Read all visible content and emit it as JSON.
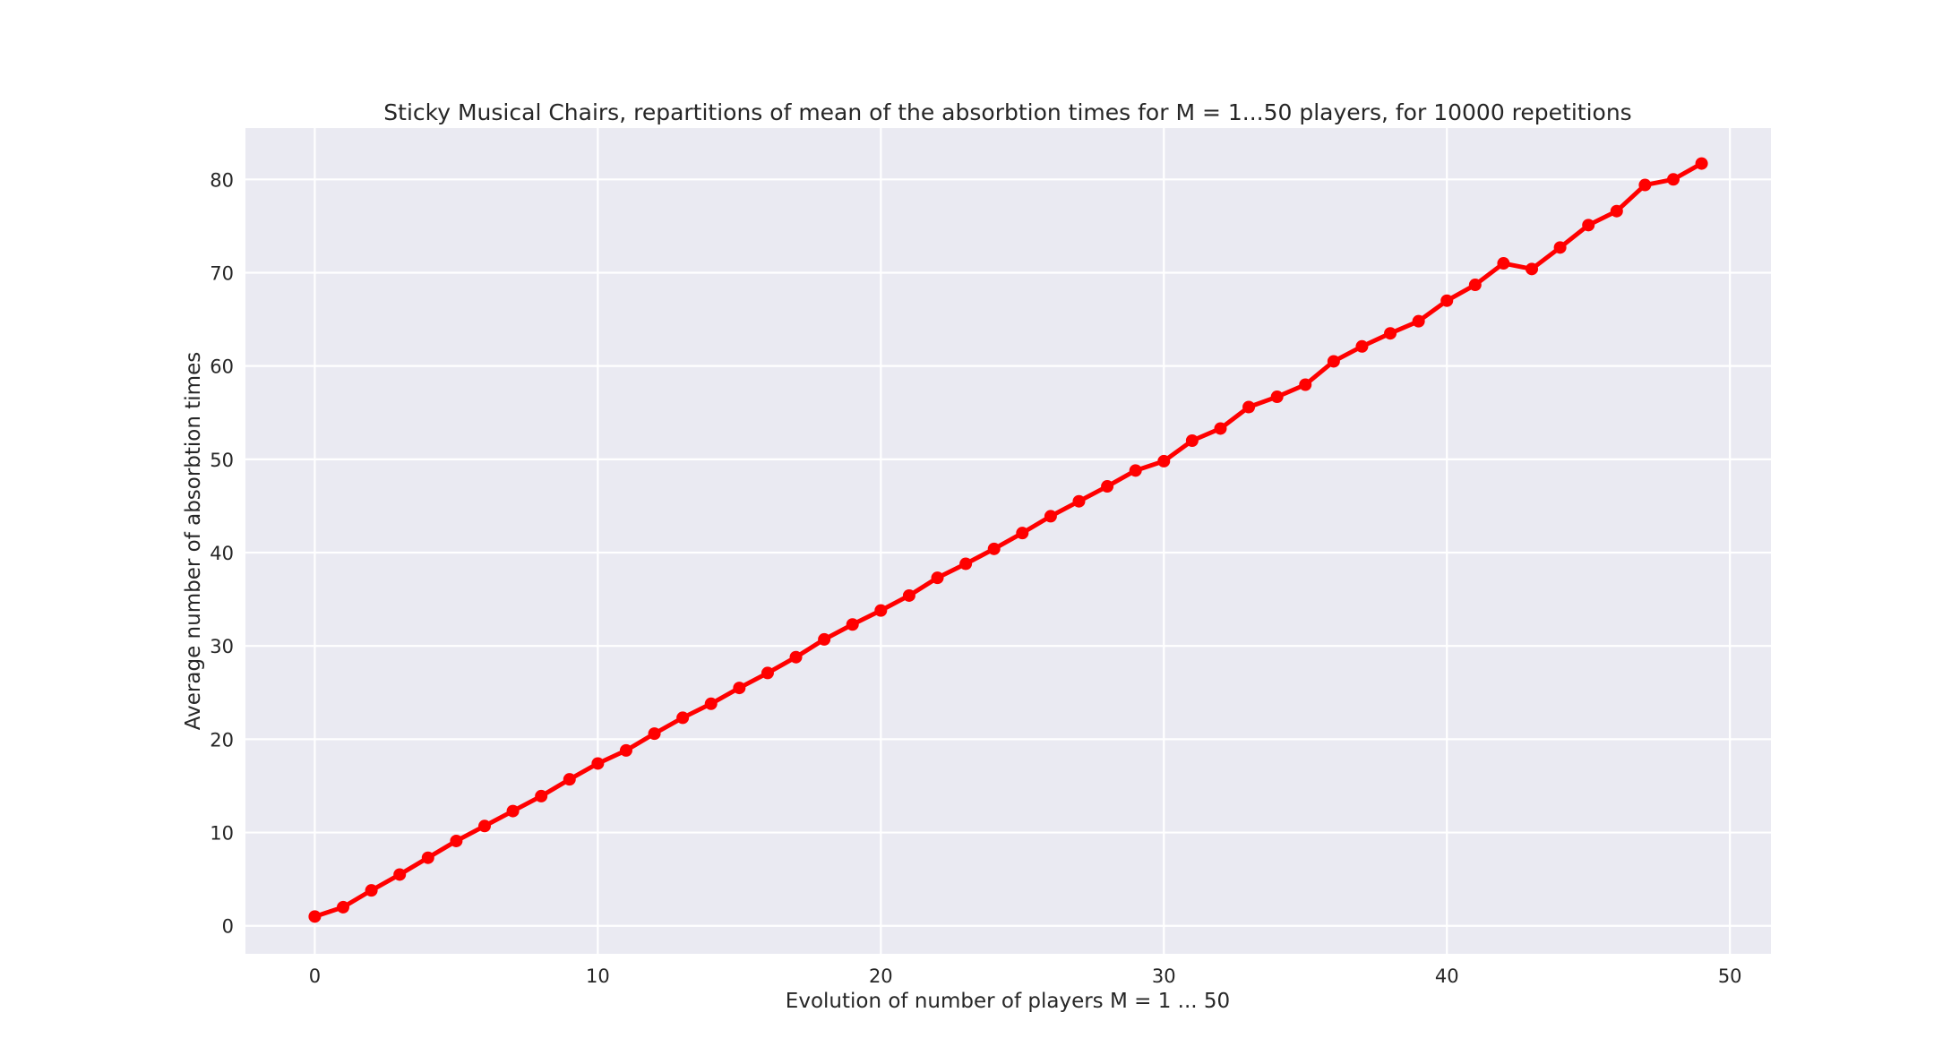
{
  "chart_data": {
    "type": "line",
    "title": "Sticky Musical Chairs, repartitions of mean of the absorbtion times for M = 1...50 players, for 10000 repetitions",
    "xlabel": "Evolution of number of players M = 1 ... 50",
    "ylabel": "Average number of absorbtion times",
    "xlim": [
      -2.45,
      51.45
    ],
    "ylim": [
      -3,
      85.5
    ],
    "xticks": [
      0,
      10,
      20,
      30,
      40,
      50
    ],
    "yticks": [
      0,
      10,
      20,
      30,
      40,
      50,
      60,
      70,
      80
    ],
    "grid": true,
    "background": "#eaeaf2",
    "series": [
      {
        "color": "#ff0000",
        "marker": "circle",
        "x": [
          0,
          1,
          2,
          3,
          4,
          5,
          6,
          7,
          8,
          9,
          10,
          11,
          12,
          13,
          14,
          15,
          16,
          17,
          18,
          19,
          20,
          21,
          22,
          23,
          24,
          25,
          26,
          27,
          28,
          29,
          30,
          31,
          32,
          33,
          34,
          35,
          36,
          37,
          38,
          39,
          40,
          41,
          42,
          43,
          44,
          45,
          46,
          47,
          48,
          49
        ],
        "values": [
          1.0,
          2.0,
          3.8,
          5.5,
          7.3,
          9.1,
          10.7,
          12.3,
          13.9,
          15.7,
          17.4,
          18.8,
          20.6,
          22.3,
          23.8,
          25.5,
          27.1,
          28.8,
          30.7,
          32.3,
          33.8,
          35.4,
          37.3,
          38.8,
          40.4,
          42.1,
          43.9,
          45.5,
          47.1,
          48.8,
          49.8,
          52.0,
          53.3,
          55.6,
          56.7,
          58.0,
          60.5,
          62.1,
          63.5,
          64.8,
          67.0,
          68.7,
          71.0,
          70.4,
          72.7,
          75.1,
          76.6,
          79.4,
          80.0,
          81.7
        ]
      }
    ]
  }
}
